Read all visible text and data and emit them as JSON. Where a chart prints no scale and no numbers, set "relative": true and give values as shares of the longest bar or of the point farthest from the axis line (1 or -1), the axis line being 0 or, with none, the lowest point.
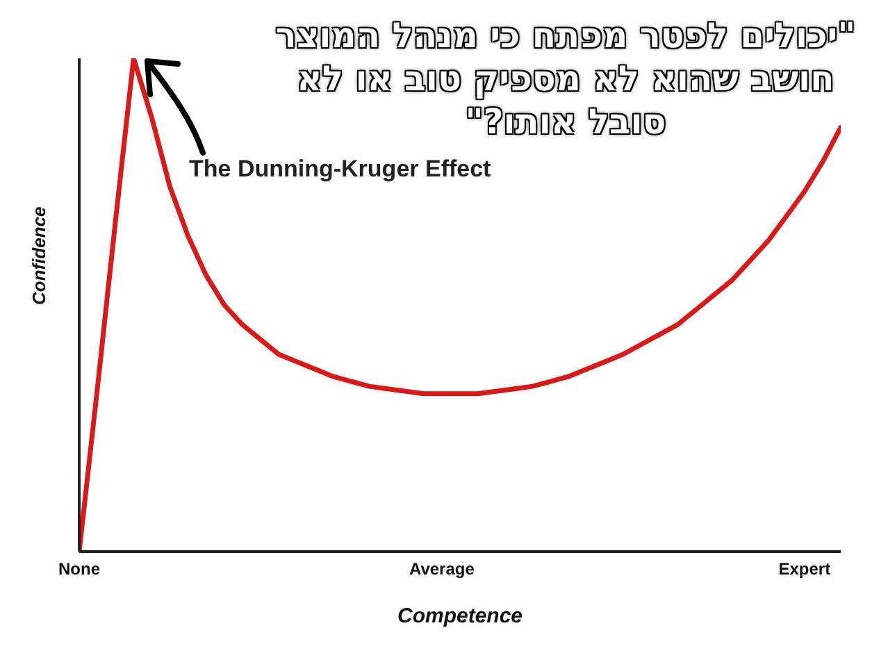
{
  "chart_data": {
    "type": "line",
    "title": "The Dunning-Kruger Effect",
    "xlabel": "Competence",
    "ylabel": "Confidence",
    "relative": true,
    "annotations": [
      "\"יכולים לפטר מפתח כי מנהל המוצר חושב שהוא לא מספיק טוב או לא סובל אותו?\""
    ],
    "categories": [
      "None",
      null,
      null,
      null,
      null,
      null,
      null,
      null,
      null,
      null,
      null,
      null,
      null,
      null,
      null,
      null,
      null,
      null,
      null,
      null,
      "Average",
      null,
      null,
      null,
      null,
      null,
      null,
      null,
      null,
      null,
      null,
      null,
      null,
      null,
      null,
      null,
      null,
      null,
      null,
      null,
      "Expert",
      null,
      null
    ],
    "series": [
      {
        "color": "#d91a1a",
        "values": [
          0,
          0.33,
          0.67,
          1,
          0.88,
          0.74,
          0.64,
          0.56,
          0.5,
          0.46,
          0.43,
          0.4,
          0.385,
          0.37,
          0.355,
          0.345,
          0.335,
          0.33,
          0.325,
          0.32,
          0.32,
          0.32,
          0.32,
          0.325,
          0.33,
          0.335,
          0.345,
          0.355,
          0.37,
          0.385,
          0.4,
          0.42,
          0.44,
          0.46,
          0.49,
          0.52,
          0.55,
          0.59,
          0.63,
          0.68,
          0.73,
          0.79,
          0.86
        ]
      }
    ],
    "grid": false,
    "legend": false,
    "marker": "none",
    "line_style": "solid"
  }
}
